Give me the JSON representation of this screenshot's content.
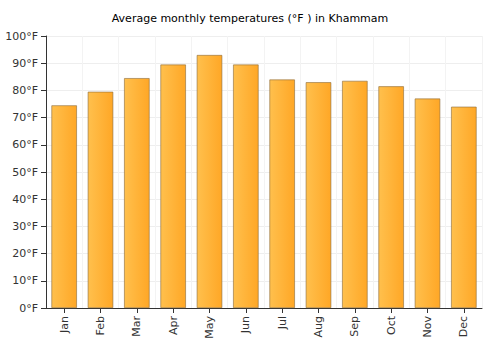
{
  "chart_data": {
    "type": "bar",
    "title": "Average monthly temperatures (°F ) in Khammam",
    "categories": [
      "Jan",
      "Feb",
      "Mar",
      "Apr",
      "May",
      "Jun",
      "Jul",
      "Aug",
      "Sep",
      "Oct",
      "Nov",
      "Dec"
    ],
    "values": [
      74.5,
      79.5,
      84.5,
      89.5,
      93,
      89.5,
      84,
      83,
      83.5,
      81.5,
      77,
      74
    ],
    "color": "#ffa726",
    "ylim": [
      0,
      100
    ],
    "yticks": [
      {
        "value": 0,
        "label": "0°F"
      },
      {
        "value": 10,
        "label": "10°F"
      },
      {
        "value": 20,
        "label": "20°F"
      },
      {
        "value": 30,
        "label": "30°F"
      },
      {
        "value": 40,
        "label": "40°F"
      },
      {
        "value": 50,
        "label": "50°F"
      },
      {
        "value": 60,
        "label": "60°F"
      },
      {
        "value": 70,
        "label": "70°F"
      },
      {
        "value": 80,
        "label": "80°F"
      },
      {
        "value": 90,
        "label": "90°F"
      },
      {
        "value": 100,
        "label": "100°F"
      }
    ],
    "grid": true
  }
}
